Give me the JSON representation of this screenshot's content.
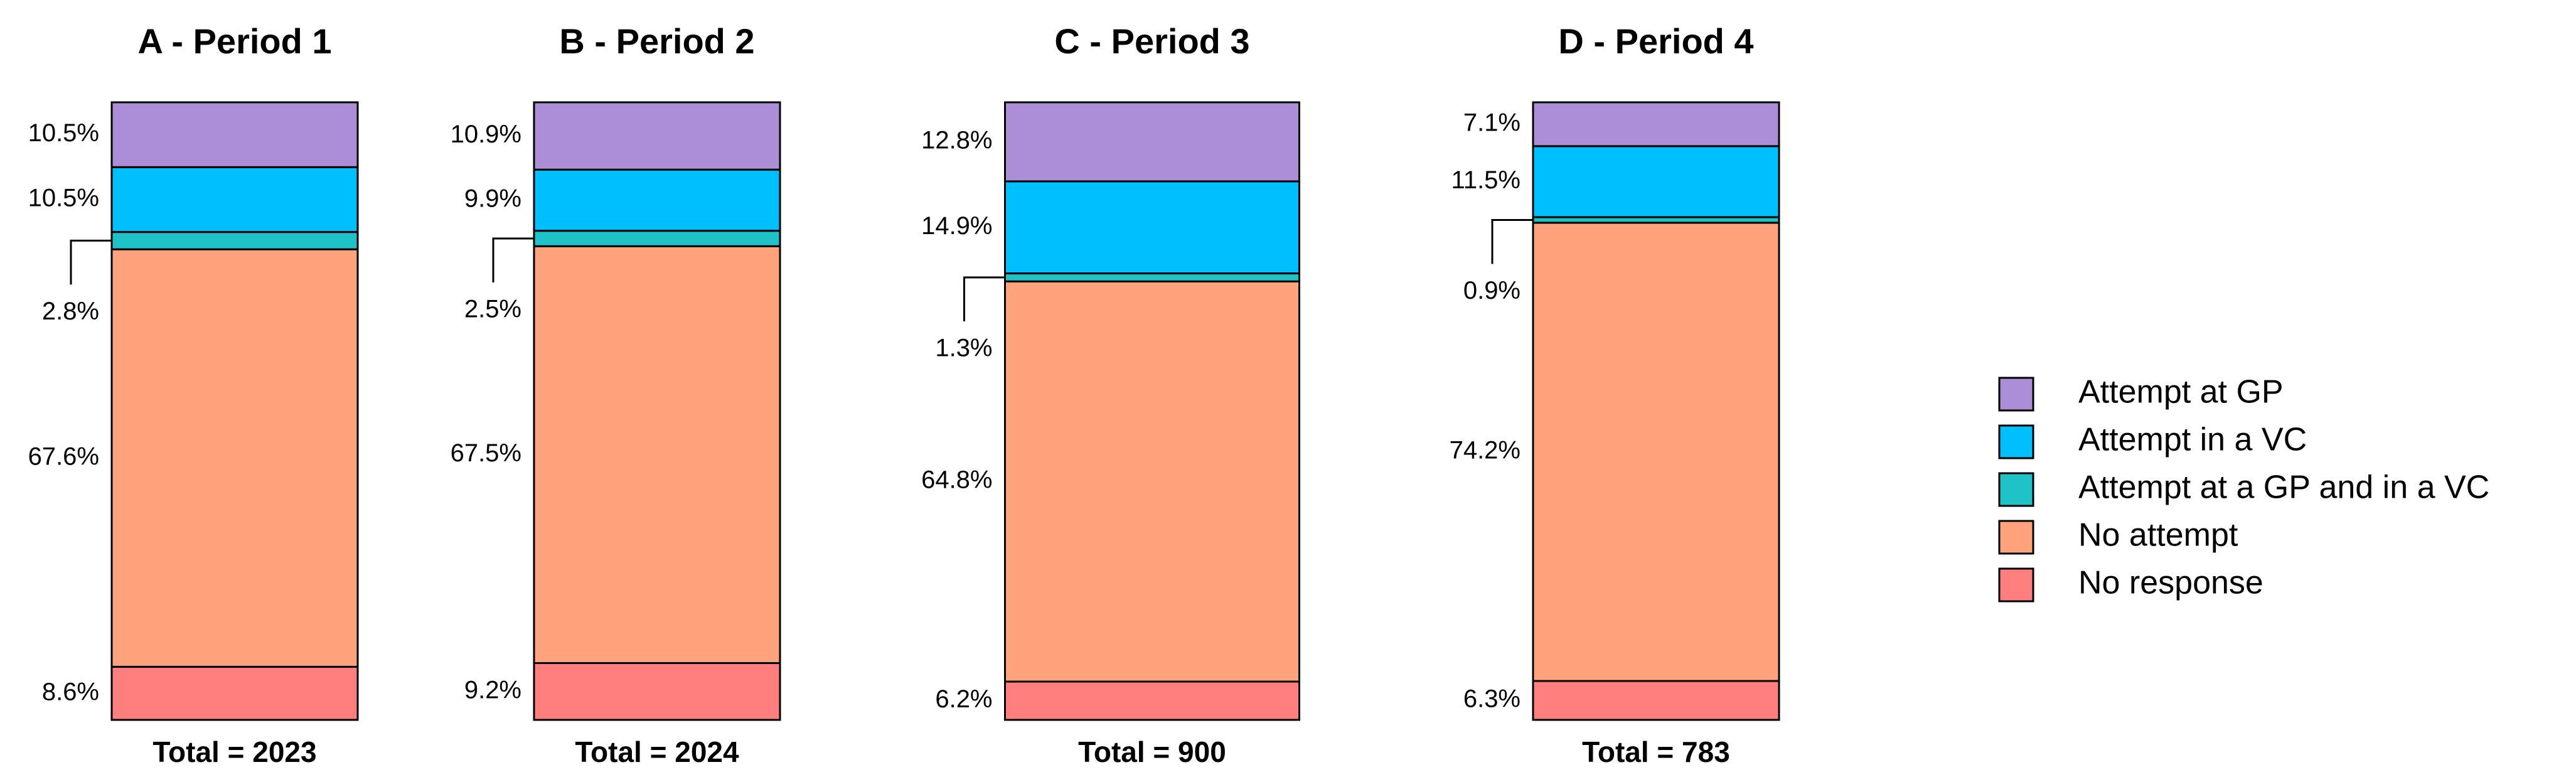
{
  "chart_data": [
    {
      "type": "bar",
      "stacked": true,
      "title": "A - Period 1",
      "xlabel": "Total = 2023",
      "ylim": [
        0,
        100
      ],
      "series": [
        {
          "name": "Attempt at GP",
          "color": "#ab8ed6",
          "values": [
            10.5
          ],
          "value_labels": [
            "10.5%"
          ]
        },
        {
          "name": "Attempt in a VC",
          "color": "#00bfff",
          "values": [
            10.5
          ],
          "value_labels": [
            "10.5%"
          ]
        },
        {
          "name": "Attempt at a GP and in a VC",
          "color": "#1fc3c7",
          "values": [
            2.8
          ],
          "value_labels": [
            "2.8%"
          ]
        },
        {
          "name": "No attempt",
          "color": "#ffa37c",
          "values": [
            67.6
          ],
          "value_labels": [
            "67.6%"
          ]
        },
        {
          "name": "No response",
          "color": "#ff7f7f",
          "values": [
            8.6
          ],
          "value_labels": [
            "8.6%"
          ]
        }
      ]
    },
    {
      "type": "bar",
      "stacked": true,
      "title": "B - Period 2",
      "xlabel": "Total = 2024",
      "ylim": [
        0,
        100
      ],
      "series": [
        {
          "name": "Attempt at GP",
          "color": "#ab8ed6",
          "values": [
            10.9
          ],
          "value_labels": [
            "10.9%"
          ]
        },
        {
          "name": "Attempt in a VC",
          "color": "#00bfff",
          "values": [
            9.9
          ],
          "value_labels": [
            "9.9%"
          ]
        },
        {
          "name": "Attempt at a GP and in a VC",
          "color": "#1fc3c7",
          "values": [
            2.5
          ],
          "value_labels": [
            "2.5%"
          ]
        },
        {
          "name": "No attempt",
          "color": "#ffa37c",
          "values": [
            67.5
          ],
          "value_labels": [
            "67.5%"
          ]
        },
        {
          "name": "No response",
          "color": "#ff7f7f",
          "values": [
            9.2
          ],
          "value_labels": [
            "9.2%"
          ]
        }
      ]
    },
    {
      "type": "bar",
      "stacked": true,
      "title": "C - Period 3",
      "xlabel": "Total = 900",
      "ylim": [
        0,
        100
      ],
      "series": [
        {
          "name": "Attempt at GP",
          "color": "#ab8ed6",
          "values": [
            12.8
          ],
          "value_labels": [
            "12.8%"
          ]
        },
        {
          "name": "Attempt in a VC",
          "color": "#00bfff",
          "values": [
            14.9
          ],
          "value_labels": [
            "14.9%"
          ]
        },
        {
          "name": "Attempt at a GP and in a VC",
          "color": "#1fc3c7",
          "values": [
            1.3
          ],
          "value_labels": [
            "1.3%"
          ]
        },
        {
          "name": "No attempt",
          "color": "#ffa37c",
          "values": [
            64.8
          ],
          "value_labels": [
            "64.8%"
          ]
        },
        {
          "name": "No response",
          "color": "#ff7f7f",
          "values": [
            6.2
          ],
          "value_labels": [
            "6.2%"
          ]
        }
      ]
    },
    {
      "type": "bar",
      "stacked": true,
      "title": "D - Period 4",
      "xlabel": "Total = 783",
      "ylim": [
        0,
        100
      ],
      "series": [
        {
          "name": "Attempt at GP",
          "color": "#ab8ed6",
          "values": [
            7.1
          ],
          "value_labels": [
            "7.1%"
          ]
        },
        {
          "name": "Attempt in a VC",
          "color": "#00bfff",
          "values": [
            11.5
          ],
          "value_labels": [
            "11.5%"
          ]
        },
        {
          "name": "Attempt at a GP and in a VC",
          "color": "#1fc3c7",
          "values": [
            0.9
          ],
          "value_labels": [
            "0.9%"
          ]
        },
        {
          "name": "No attempt",
          "color": "#ffa37c",
          "values": [
            74.2
          ],
          "value_labels": [
            "74.2%"
          ]
        },
        {
          "name": "No response",
          "color": "#ff7f7f",
          "values": [
            6.3
          ],
          "value_labels": [
            "6.3%"
          ]
        }
      ]
    }
  ]
}
